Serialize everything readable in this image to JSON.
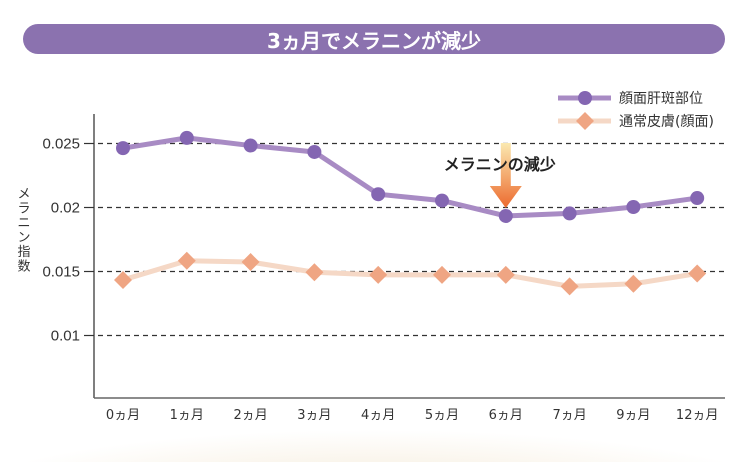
{
  "title": "3ヵ月でメラニンが減少",
  "colors": {
    "title_bg": "#8b72af",
    "series_purple_line": "#a88bc4",
    "series_purple_marker": "#8466b2",
    "series_peach_line": "#f5d8c6",
    "series_peach_marker": "#efa583",
    "arrow_top": "#fbe9b0",
    "arrow_bottom": "#ec6a2e"
  },
  "chart_data": {
    "type": "line",
    "title": "3ヵ月でメラニンが減少",
    "xlabel": "",
    "ylabel": "メラニン指数",
    "categories": [
      "0ヵ月",
      "1ヵ月",
      "2ヵ月",
      "3ヵ月",
      "4ヵ月",
      "5ヵ月",
      "6ヵ月",
      "7ヵ月",
      "9ヵ月",
      "12ヵ月"
    ],
    "yticks": [
      0.01,
      0.015,
      0.02,
      0.025
    ],
    "ytick_labels": [
      "0.01",
      "0.015",
      "0.02",
      "0.025"
    ],
    "ylim": [
      0.005,
      0.0283
    ],
    "grid": "dashed horizontal",
    "legend_position": "top-right",
    "series": [
      {
        "name": "顔面肝斑部位",
        "marker": "circle",
        "values": [
          0.0246,
          0.0254,
          0.0248,
          0.0243,
          0.021,
          0.0205,
          0.0193,
          0.0195,
          0.02,
          0.0207
        ]
      },
      {
        "name": "通常皮膚(顔面)",
        "marker": "diamond",
        "values": [
          0.0143,
          0.0158,
          0.0157,
          0.0149,
          0.0147,
          0.0147,
          0.0147,
          0.0138,
          0.014,
          0.0148
        ]
      }
    ],
    "annotations": [
      {
        "text": "メラニンの減少",
        "category": "6ヵ月",
        "arrow": "down"
      }
    ]
  }
}
